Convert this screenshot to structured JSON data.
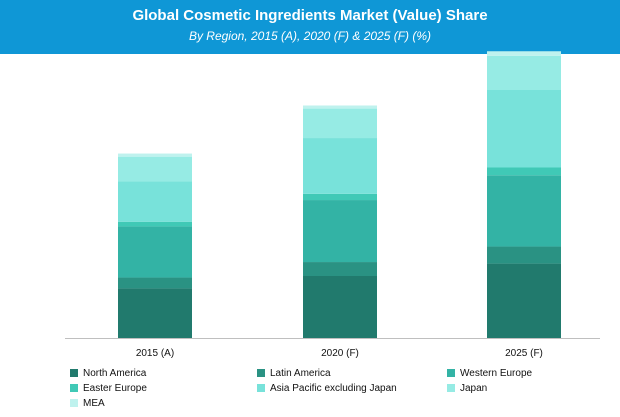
{
  "chart_data": {
    "type": "bar",
    "stacked": true,
    "title": "Global Cosmetic Ingredients Market (Value) Share",
    "subtitle": "By Region, 2015 (A), 2020 (F) & 2025 (F) (%)",
    "categories": [
      "2015 (A)",
      "2020 (F)",
      "2025 (F)"
    ],
    "xlabel": "",
    "ylabel": "",
    "ylim": [
      0,
      100
    ],
    "grid": false,
    "legend_position": "bottom",
    "series": [
      {
        "name": "North America",
        "color": "#217a6d",
        "values": [
          16,
          20,
          24
        ]
      },
      {
        "name": "Latin America",
        "color": "#2a9283",
        "values": [
          3.5,
          4.5,
          5.5
        ]
      },
      {
        "name": "Western Europe",
        "color": "#33b3a5",
        "values": [
          16.5,
          20,
          23
        ]
      },
      {
        "name": "Easter Europe",
        "color": "#40c9b6",
        "values": [
          1.5,
          2,
          2.5
        ]
      },
      {
        "name": "Asia Pacific excluding Japan",
        "color": "#78e2da",
        "values": [
          13,
          18,
          25
        ]
      },
      {
        "name": "Japan",
        "color": "#96ebe4",
        "values": [
          8,
          9.5,
          11
        ]
      },
      {
        "name": "MEA",
        "color": "#bff2ee",
        "values": [
          1,
          1,
          1.5
        ]
      }
    ]
  }
}
